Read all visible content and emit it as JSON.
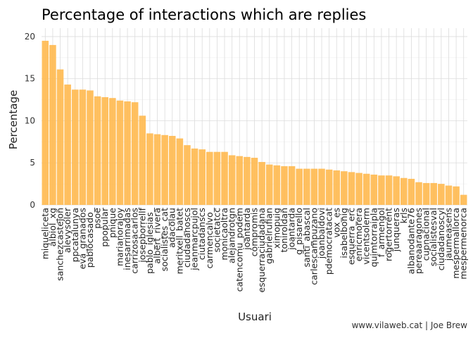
{
  "chart_data": {
    "type": "bar",
    "title": "Percentage of interactions which are replies",
    "xlabel": "Usuari",
    "ylabel": "Percentage",
    "caption": "www.vilaweb.cat | Joe Brew",
    "ylim": [
      0,
      21
    ],
    "yticks": [
      0,
      5,
      10,
      15,
      20
    ],
    "grid": true,
    "bar_color": "#ffb94f",
    "categories": [
      "miqueliceta",
      "albiol_xg",
      "sanchezcastejon",
      "alevysoler",
      "ppcatalunya",
      "eva_granados",
      "pablocasado_",
      "psoe",
      "ppopular",
      "pnique",
      "marianorajoy",
      "inesarrimadas",
      "carrizosacarlos",
      "josepborrellf",
      "pablo_iglesias_",
      "albert_rivera",
      "socialistes_cat",
      "adacolau",
      "meritxell_batet",
      "ciudadanoscs",
      "jeanmarcpujol",
      "ciutadanscs",
      "carmencalvo_",
      "societatcc",
      "monicaoltra",
      "alejandrotgn",
      "catencomu_podem",
      "joantarda",
      "compromis",
      "esquerraciudadana",
      "gabrielrufian",
      "ximopuig",
      "toniroldan",
      "joantarda",
      "g_pisarello",
      "santi_abascal",
      "carlescampuzano",
      "joanbaldovi",
      "pdemocratacat",
      "vox_es",
      "isabelbonig",
      "esquerra_erc",
      "enricmorera",
      "vicentsolerm",
      "quimtorraipla",
      "f_armengol",
      "rogertorrent",
      "junqueras",
      "krls",
      "albanodante76",
      "pereaaragones",
      "cupnacional",
      "socialistesval",
      "ciudadanoscyl",
      "jaumeasens",
      "mespermallorca",
      "mespermenorca"
    ],
    "values": [
      19.5,
      19.0,
      16.1,
      14.3,
      13.7,
      13.7,
      13.6,
      12.9,
      12.8,
      12.7,
      12.4,
      12.3,
      12.2,
      10.6,
      8.5,
      8.4,
      8.3,
      8.2,
      7.9,
      7.1,
      6.7,
      6.6,
      6.3,
      6.3,
      6.3,
      5.9,
      5.8,
      5.7,
      5.6,
      5.1,
      4.8,
      4.7,
      4.6,
      4.6,
      4.3,
      4.3,
      4.3,
      4.3,
      4.2,
      4.1,
      4.0,
      3.9,
      3.8,
      3.7,
      3.6,
      3.5,
      3.5,
      3.4,
      3.2,
      3.1,
      2.7,
      2.6,
      2.6,
      2.5,
      2.3,
      2.2,
      1.2
    ]
  }
}
